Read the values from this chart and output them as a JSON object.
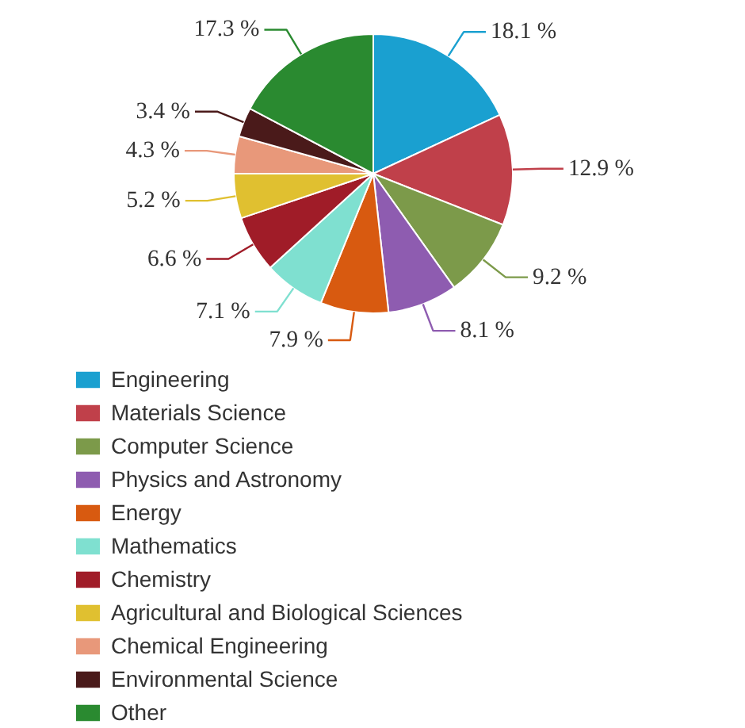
{
  "chart_data": {
    "type": "pie",
    "categories": [
      "Engineering",
      "Materials Science",
      "Computer Science",
      "Physics and Astronomy",
      "Energy",
      "Mathematics",
      "Chemistry",
      "Agricultural and Biological Sciences",
      "Chemical Engineering",
      "Environmental Science",
      "Other"
    ],
    "values": [
      18.1,
      12.9,
      9.2,
      8.1,
      7.9,
      7.1,
      6.6,
      5.2,
      4.3,
      3.4,
      17.3
    ],
    "value_labels": [
      "18.1 %",
      "12.9 %",
      "9.2 %",
      "8.1 %",
      "7.9 %",
      "7.1 %",
      "6.6 %",
      "5.2 %",
      "4.3 %",
      "3.4 %",
      "17.3 %"
    ],
    "colors": [
      "#1aa0d0",
      "#c0404a",
      "#7c9a4a",
      "#8e5cb0",
      "#d85a10",
      "#7fe0d0",
      "#a01c28",
      "#e0c030",
      "#e8987a",
      "#4a1a1a",
      "#2a8a30"
    ],
    "legend": "bottom"
  }
}
